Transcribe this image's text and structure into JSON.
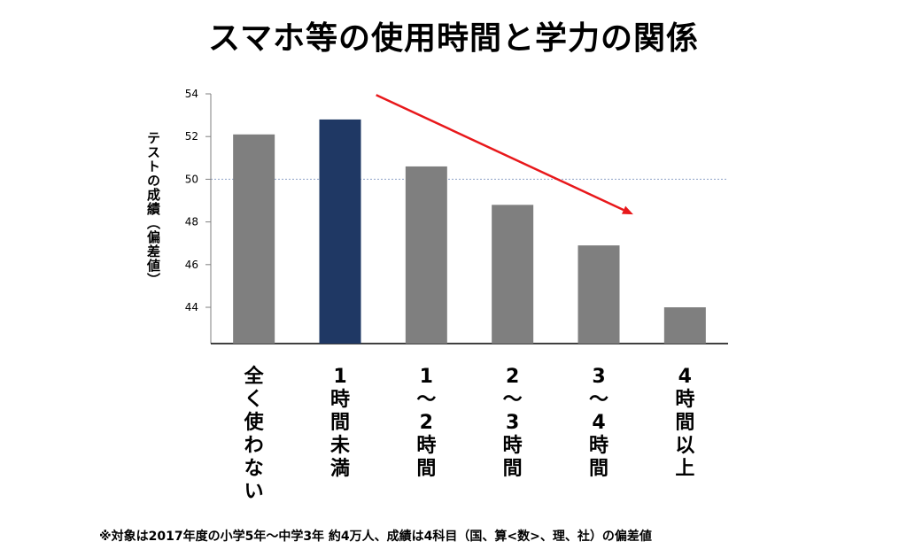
{
  "title": "スマホ等の使用時間と学力の関係",
  "note": "※対象は2017年度の小学5年〜中学3年 約4万人、成績は4科目（国、算<数>、理、社）の偏差値",
  "chart_data": {
    "type": "bar",
    "title": "スマホ等の使用時間と学力の関係",
    "ylabel": "テストの成績（偏差値）",
    "categories": [
      "全く使わない",
      "1時間未満",
      "1〜2時間",
      "2〜3時間",
      "3〜4時間",
      "4時間以上"
    ],
    "category_lines": [
      [
        "全",
        "く",
        "使",
        "わ",
        "な",
        "い"
      ],
      [
        "1",
        "時",
        "間",
        "未",
        "満"
      ],
      [
        "1",
        "〜",
        "2",
        "時",
        "間"
      ],
      [
        "2",
        "〜",
        "3",
        "時",
        "間"
      ],
      [
        "3",
        "〜",
        "4",
        "時",
        "間"
      ],
      [
        "4",
        "時",
        "間",
        "以",
        "上"
      ]
    ],
    "values": [
      52.1,
      52.8,
      50.6,
      48.8,
      46.9,
      44.0
    ],
    "bar_colors": [
      "#7f7f7f",
      "#1f3864",
      "#7f7f7f",
      "#7f7f7f",
      "#7f7f7f",
      "#7f7f7f"
    ],
    "ylim": [
      42.3,
      54
    ],
    "yticks": [
      54,
      52,
      50,
      48,
      46,
      44
    ],
    "reference_line": 50,
    "arrow_color": "#e8181b",
    "grid": false
  }
}
